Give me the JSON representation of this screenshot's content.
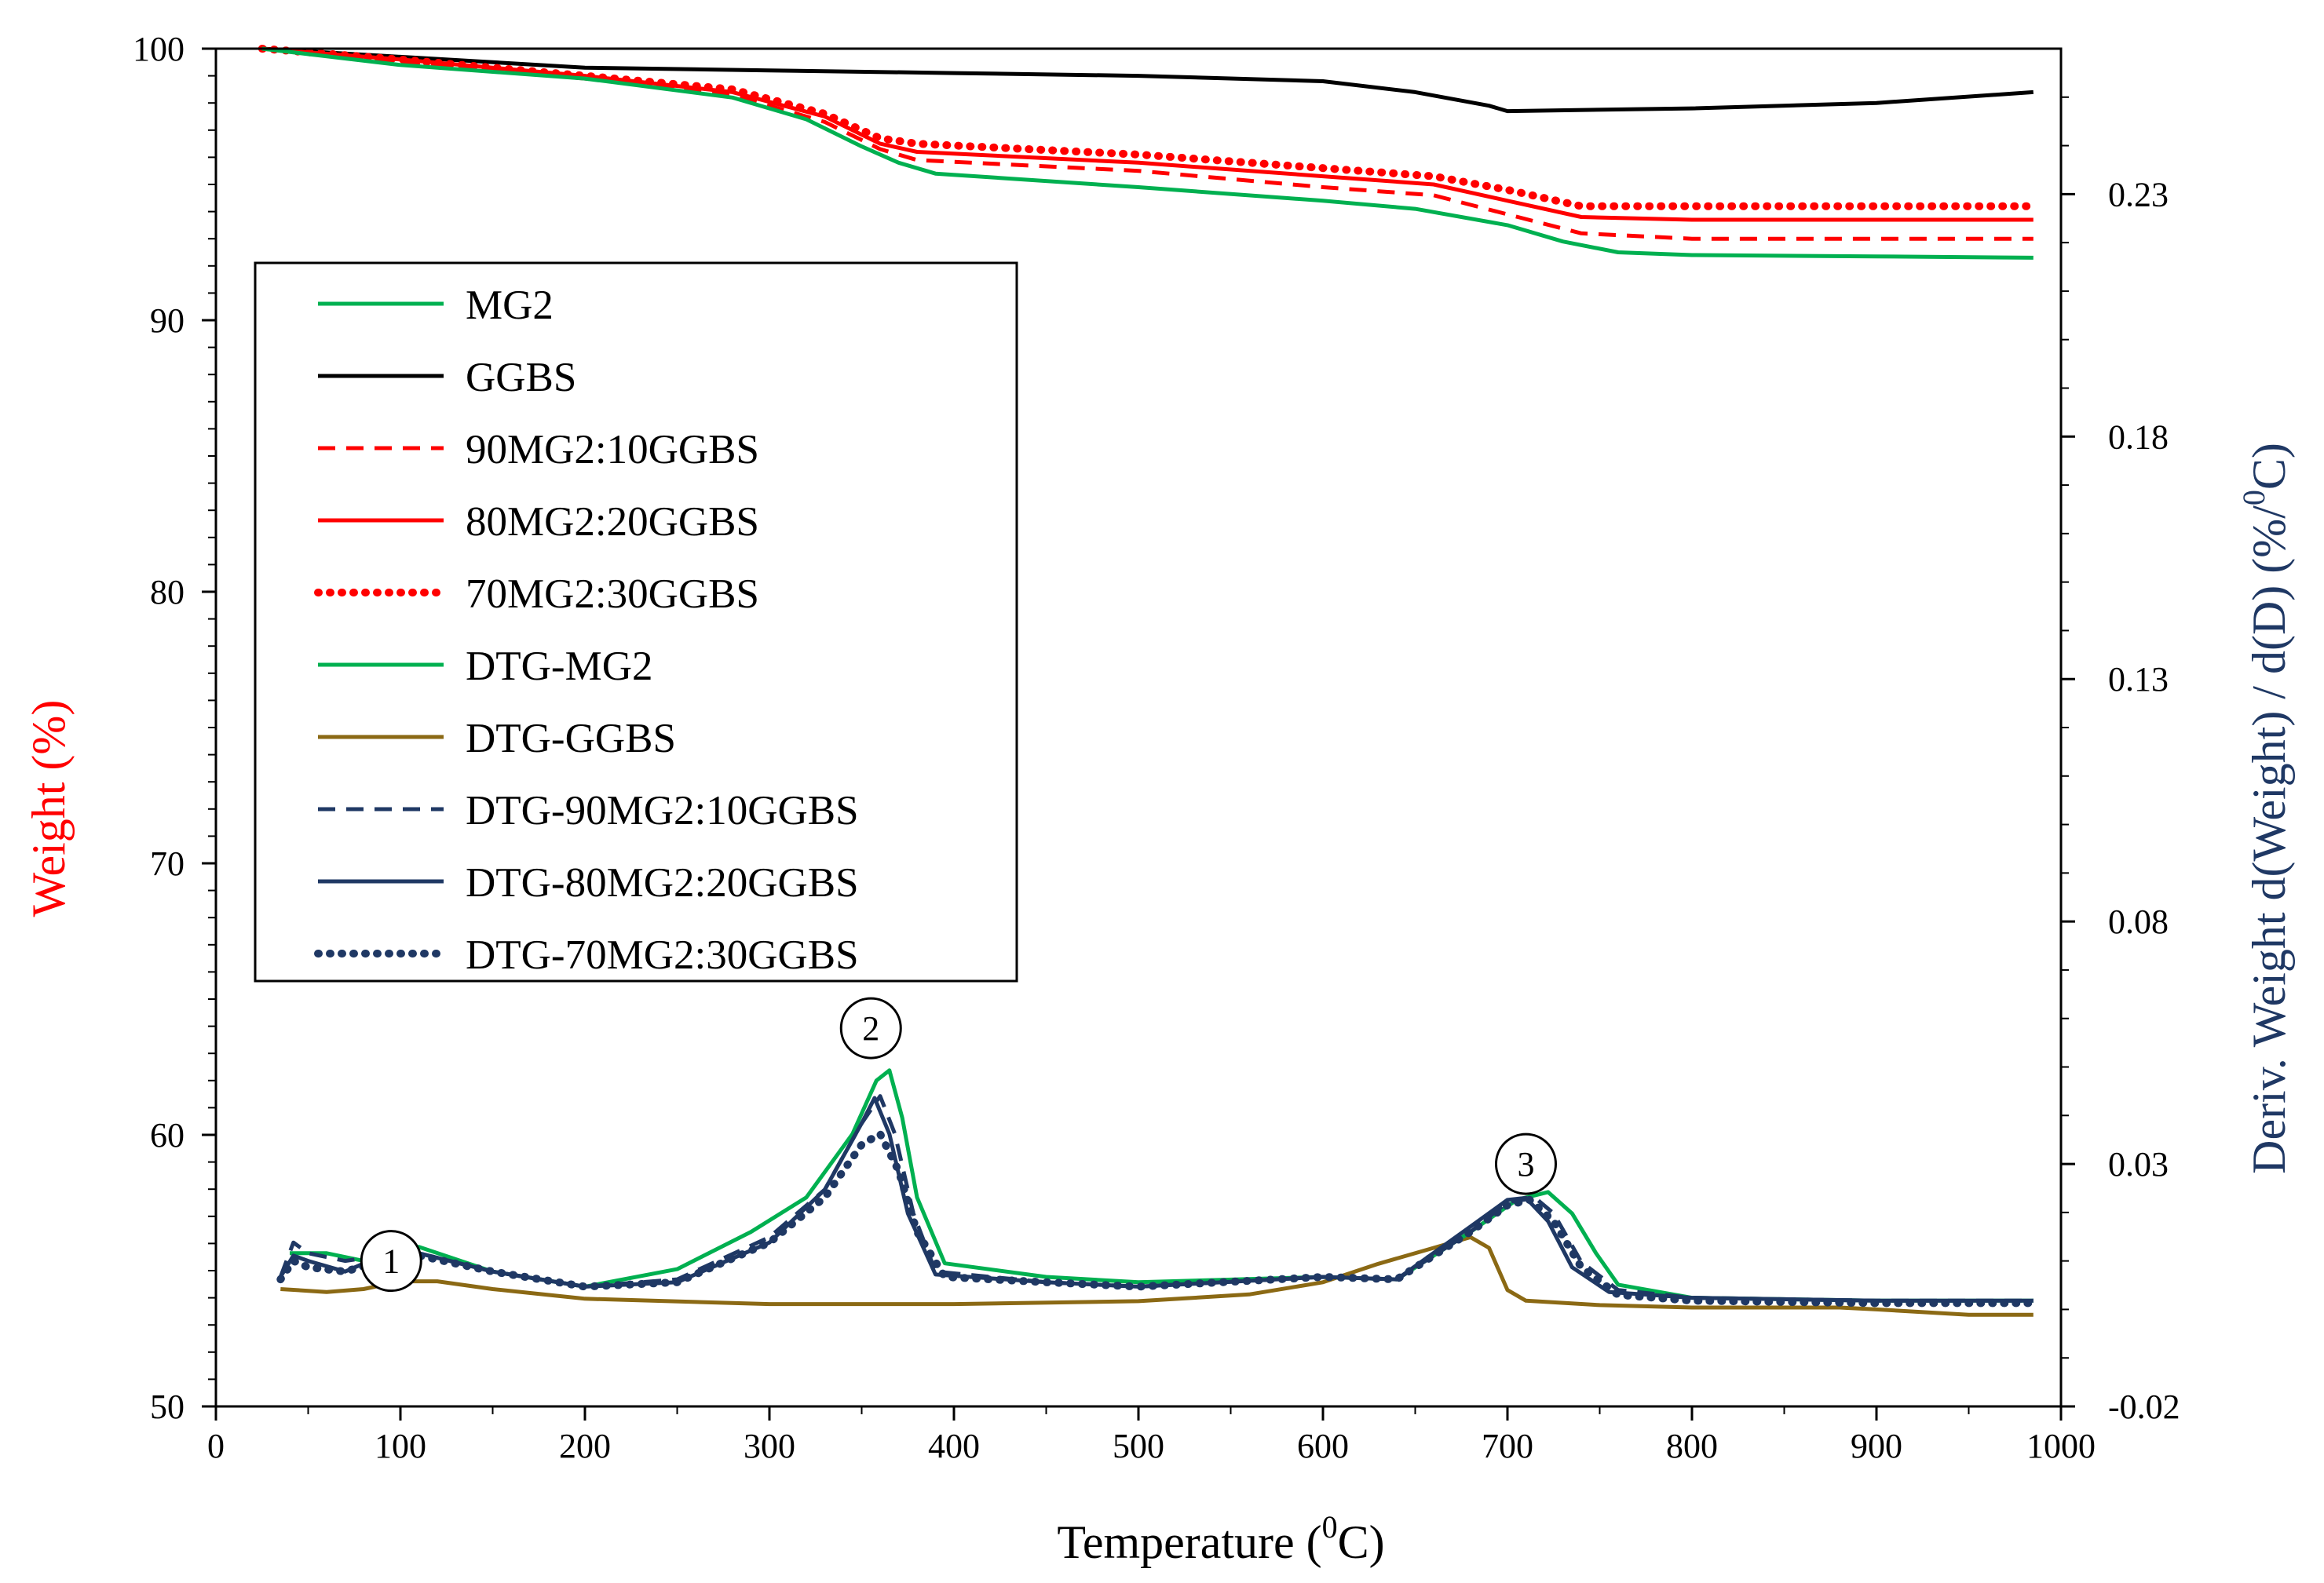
{
  "chart_data": {
    "type": "line",
    "x_axis": {
      "label": "Temperature",
      "unit_base": "0",
      "unit_tail": "C)",
      "range": [
        0,
        1000
      ],
      "ticks": [
        0,
        100,
        200,
        300,
        400,
        500,
        600,
        700,
        800,
        900,
        1000
      ]
    },
    "y_left": {
      "label": "Weight  (%)",
      "color": "#ff0000",
      "range": [
        50,
        100
      ],
      "ticks": [
        50,
        60,
        70,
        80,
        90,
        100
      ]
    },
    "y_right": {
      "label": "Deriv.  Weight  d(Weight)  /  d(D)  (%/",
      "label_sup": "0",
      "label_tail": "C)",
      "color": "#1f3864",
      "range": [
        -0.02,
        0.26
      ],
      "ticks": [
        "-0.02",
        "0.03",
        "0.08",
        "0.13",
        "0.18",
        "0.23"
      ]
    },
    "series": [
      {
        "name": "MG2",
        "axis": "left",
        "color": "#00b050",
        "style": "solid",
        "x": [
          25,
          100,
          200,
          280,
          320,
          350,
          370,
          390,
          500,
          600,
          650,
          700,
          730,
          760,
          800,
          900,
          985
        ],
        "values": [
          100,
          99.4,
          98.9,
          98.2,
          97.4,
          96.4,
          95.8,
          95.4,
          94.9,
          94.4,
          94.1,
          93.5,
          92.9,
          92.5,
          92.4,
          92.35,
          92.3
        ]
      },
      {
        "name": "GGBS",
        "axis": "left",
        "color": "#000000",
        "style": "solid",
        "x": [
          25,
          100,
          200,
          300,
          400,
          500,
          600,
          650,
          690,
          700,
          800,
          900,
          985
        ],
        "values": [
          100,
          99.7,
          99.3,
          99.2,
          99.1,
          99.0,
          98.8,
          98.4,
          97.9,
          97.7,
          97.8,
          98.0,
          98.4
        ]
      },
      {
        "name": "90MG2:10GGBS",
        "axis": "left",
        "color": "#ff0000",
        "style": "dashed",
        "x": [
          25,
          100,
          200,
          280,
          330,
          360,
          380,
          500,
          600,
          660,
          700,
          740,
          800,
          900,
          985
        ],
        "values": [
          100,
          99.5,
          98.9,
          98.3,
          97.3,
          96.3,
          95.9,
          95.5,
          94.9,
          94.6,
          93.9,
          93.2,
          93.0,
          93.0,
          93.0
        ]
      },
      {
        "name": "80MG2:20GGBS",
        "axis": "left",
        "color": "#ff0000",
        "style": "solid",
        "x": [
          25,
          100,
          200,
          280,
          330,
          360,
          380,
          500,
          600,
          660,
          700,
          740,
          800,
          900,
          985
        ],
        "values": [
          100,
          99.6,
          99.0,
          98.4,
          97.5,
          96.5,
          96.2,
          95.8,
          95.3,
          95.0,
          94.4,
          93.8,
          93.7,
          93.7,
          93.7
        ]
      },
      {
        "name": "70MG2:30GGBS",
        "axis": "left",
        "color": "#ff0000",
        "style": "dotted",
        "x": [
          25,
          100,
          200,
          280,
          330,
          360,
          380,
          500,
          600,
          660,
          700,
          740,
          800,
          900,
          985
        ],
        "values": [
          100,
          99.6,
          99.0,
          98.5,
          97.6,
          96.7,
          96.5,
          96.1,
          95.6,
          95.3,
          94.8,
          94.2,
          94.2,
          94.2,
          94.2
        ]
      },
      {
        "name": "DTG-MG2",
        "axis": "right",
        "color": "#00b050",
        "style": "solid",
        "x": [
          40,
          60,
          80,
          110,
          150,
          200,
          250,
          290,
          320,
          345,
          358,
          365,
          372,
          380,
          395,
          450,
          500,
          600,
          640,
          680,
          705,
          722,
          735,
          748,
          760,
          800,
          900,
          985
        ],
        "values": [
          0.0116,
          0.0116,
          0.01,
          0.0129,
          0.0078,
          0.0047,
          0.0083,
          0.016,
          0.0231,
          0.0362,
          0.0472,
          0.0493,
          0.0395,
          0.0231,
          0.0095,
          0.0067,
          0.0056,
          0.0067,
          0.0062,
          0.016,
          0.0226,
          0.0242,
          0.0198,
          0.0116,
          0.0051,
          0.0024,
          0.0018,
          0.0018
        ]
      },
      {
        "name": "DTG-GGBS",
        "axis": "right",
        "color": "#8b6914",
        "style": "solid",
        "x": [
          35,
          60,
          80,
          100,
          120,
          150,
          200,
          300,
          400,
          500,
          560,
          600,
          630,
          660,
          680,
          690,
          700,
          710,
          750,
          800,
          880,
          900,
          950,
          985
        ],
        "values": [
          0.0042,
          0.0036,
          0.0042,
          0.0058,
          0.0058,
          0.0042,
          0.0022,
          0.0011,
          0.0011,
          0.0017,
          0.0031,
          0.0056,
          0.0094,
          0.0127,
          0.0149,
          0.0127,
          0.004,
          0.0018,
          0.0009,
          0.0004,
          0.0004,
          0.0,
          -0.0011,
          -0.0011
        ]
      },
      {
        "name": "DTG-90MG2:10GGBS",
        "axis": "right",
        "color": "#1f3864",
        "style": "dashed",
        "x": [
          35,
          42,
          50,
          70,
          90,
          110,
          150,
          200,
          250,
          300,
          330,
          350,
          360,
          368,
          378,
          390,
          450,
          500,
          600,
          640,
          680,
          700,
          715,
          725,
          740,
          760,
          800,
          900,
          985
        ],
        "values": [
          0.0067,
          0.0138,
          0.0116,
          0.01,
          0.0111,
          0.0116,
          0.0078,
          0.0047,
          0.0062,
          0.0149,
          0.0247,
          0.0384,
          0.044,
          0.0362,
          0.0198,
          0.0078,
          0.0056,
          0.0047,
          0.0067,
          0.0062,
          0.016,
          0.0221,
          0.023,
          0.0198,
          0.0098,
          0.004,
          0.0024,
          0.0018,
          0.0018
        ]
      },
      {
        "name": "DTG-80MG2:20GGBS",
        "axis": "right",
        "color": "#1f3864",
        "style": "solid",
        "x": [
          35,
          42,
          50,
          70,
          90,
          110,
          150,
          200,
          250,
          300,
          330,
          350,
          357,
          365,
          375,
          390,
          450,
          500,
          600,
          640,
          680,
          700,
          710,
          722,
          735,
          755,
          800,
          900,
          985
        ],
        "values": [
          0.0067,
          0.0111,
          0.01,
          0.0078,
          0.0111,
          0.0116,
          0.0078,
          0.0047,
          0.0056,
          0.0138,
          0.0247,
          0.0384,
          0.0436,
          0.0362,
          0.0198,
          0.0072,
          0.0056,
          0.0047,
          0.0067,
          0.0062,
          0.0171,
          0.0226,
          0.023,
          0.0182,
          0.0087,
          0.0036,
          0.0024,
          0.0018,
          0.0018
        ]
      },
      {
        "name": "DTG-70MG2:30GGBS",
        "axis": "right",
        "color": "#1f3864",
        "style": "dotted",
        "x": [
          35,
          42,
          50,
          70,
          90,
          110,
          150,
          200,
          250,
          300,
          330,
          350,
          360,
          370,
          380,
          395,
          450,
          500,
          600,
          640,
          680,
          700,
          712,
          725,
          740,
          760,
          800,
          900,
          985
        ],
        "values": [
          0.0062,
          0.01,
          0.0087,
          0.0078,
          0.01,
          0.0111,
          0.0078,
          0.0047,
          0.0056,
          0.0138,
          0.0231,
          0.034,
          0.0362,
          0.0286,
          0.016,
          0.0067,
          0.0056,
          0.0047,
          0.0067,
          0.0062,
          0.016,
          0.0215,
          0.0226,
          0.0182,
          0.0087,
          0.003,
          0.0018,
          0.0013,
          0.0013
        ]
      }
    ],
    "annotations": [
      {
        "text": "1",
        "x": 95,
        "y": 0.01
      },
      {
        "text": "2",
        "x": 355,
        "y": 0.058
      },
      {
        "text": "3",
        "x": 710,
        "y": 0.03
      }
    ],
    "legend": {
      "position": "upper-left"
    }
  }
}
